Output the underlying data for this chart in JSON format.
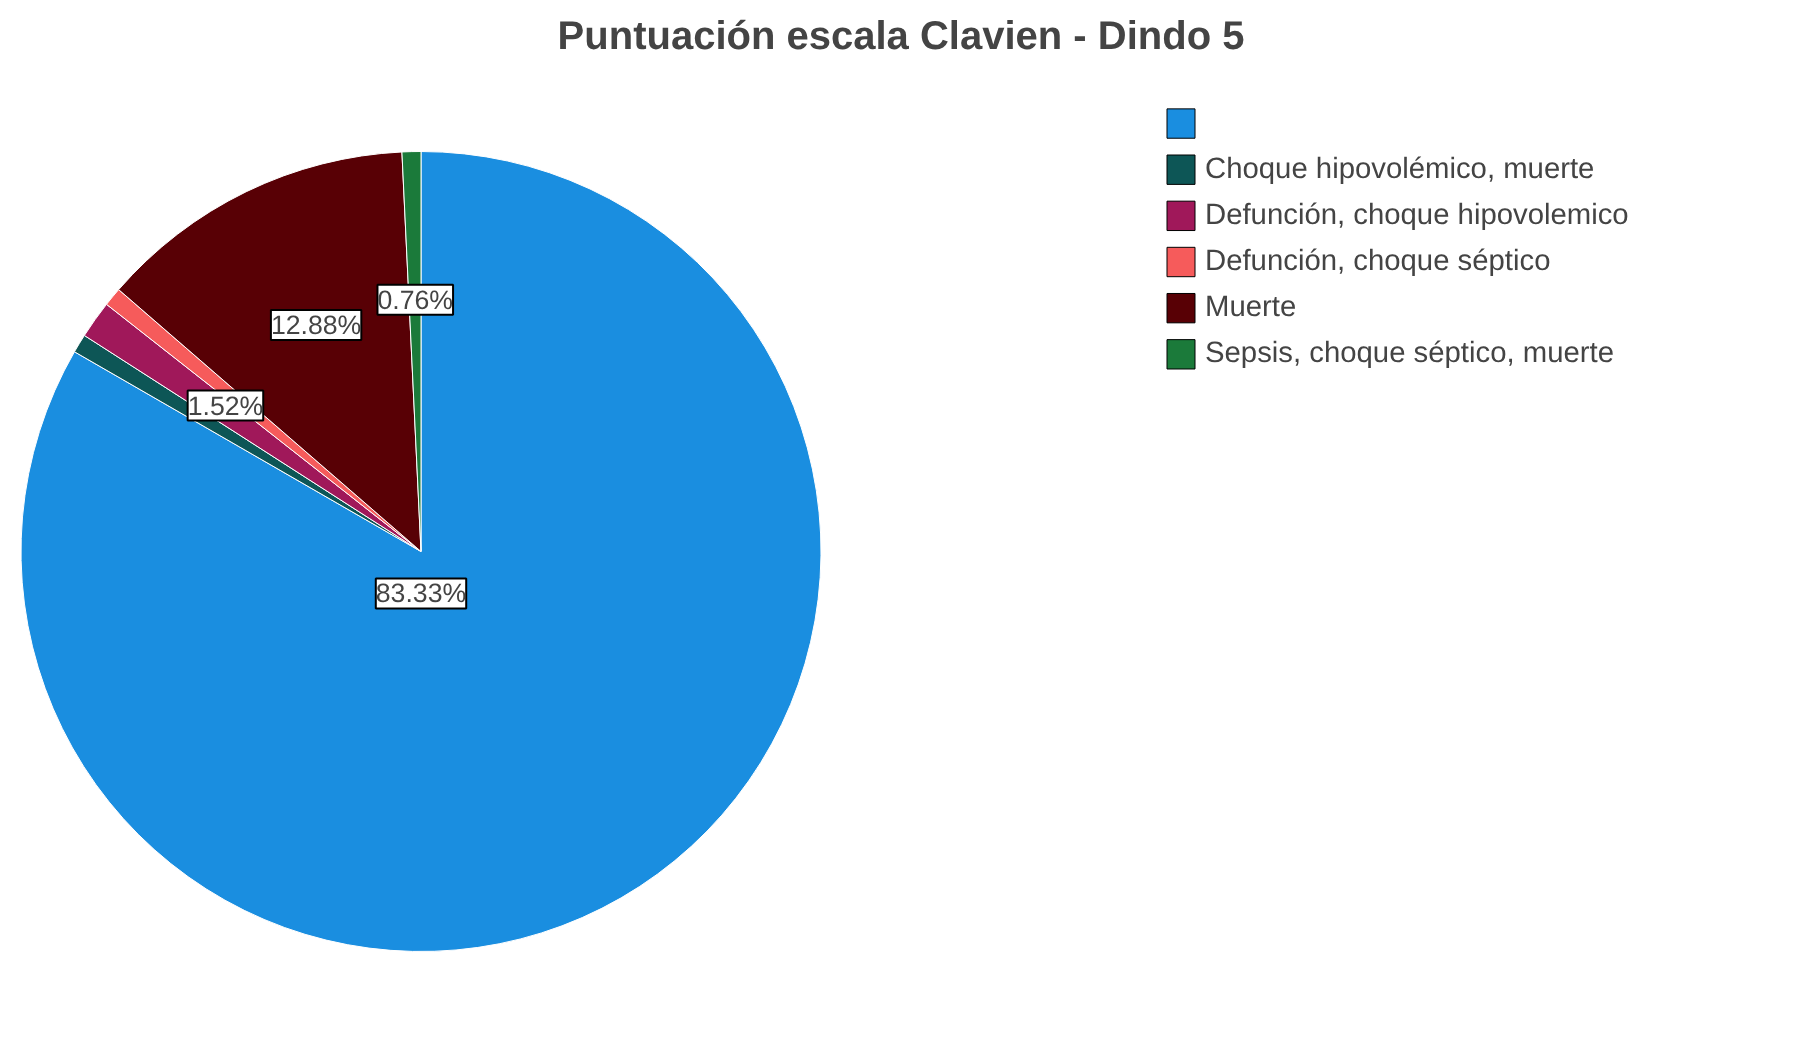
{
  "chart_data": {
    "type": "pie",
    "title": "Puntuación escala Clavien - Dindo 5",
    "categories": [
      null,
      "Choque hipovolémico, muerte",
      "Defunción, choque hipovolemico",
      "Defunción, choque séptico",
      "Muerte",
      "Sepsis, choque séptico, muerte"
    ],
    "values": [
      83.33,
      0.76,
      1.52,
      0.76,
      12.88,
      0.76
    ],
    "colors": [
      "#1a8ee0",
      "#0d5656",
      "#a0185a",
      "#f65b5b",
      "#580005",
      "#1b7a3a"
    ],
    "value_labels": [
      "83.33%",
      null,
      "1.52%",
      null,
      "12.88%",
      "0.76%"
    ],
    "legend": "top right"
  }
}
